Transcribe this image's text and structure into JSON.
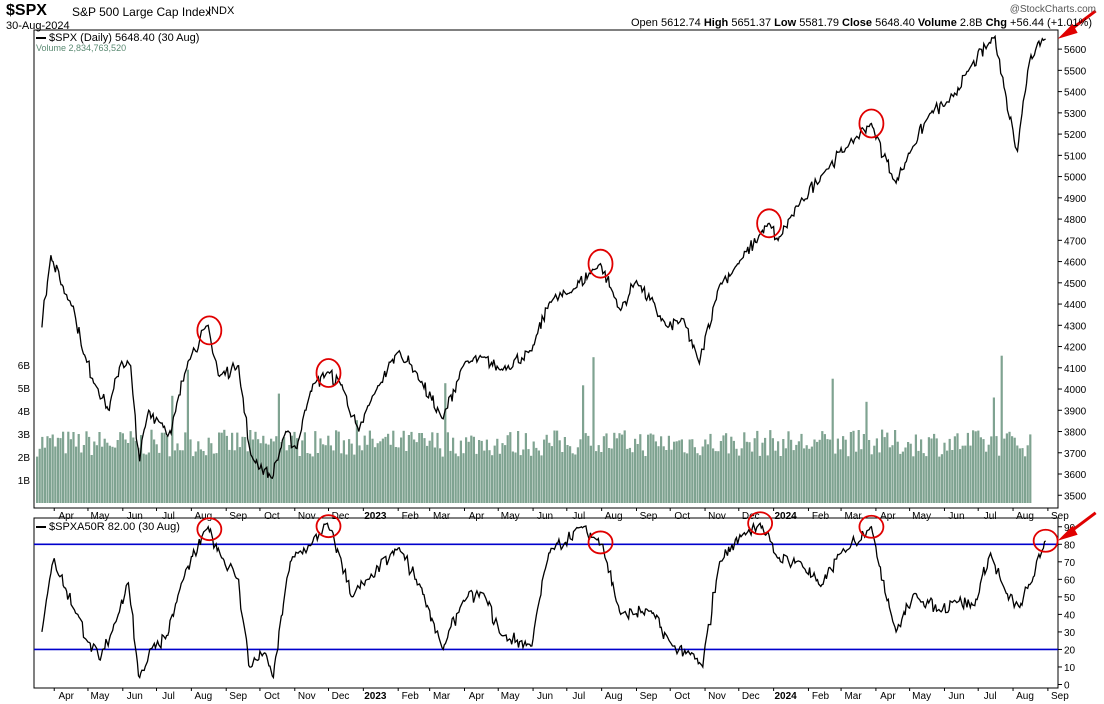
{
  "header": {
    "symbol": "$SPX",
    "name": "S&P 500 Large Cap Index",
    "exchange": "INDX",
    "date": "30-Aug-2024",
    "credit": "@StockCharts.com",
    "quote": {
      "open_label": "Open",
      "open": "5612.74",
      "high_label": "High",
      "high": "5651.37",
      "low_label": "Low",
      "low": "5581.79",
      "close_label": "Close",
      "close": "5648.40",
      "volume_label": "Volume",
      "volume": "2.8B",
      "chg_label": "Chg",
      "chg": "+56.44 (+1.01%)"
    }
  },
  "legend": {
    "price": "$SPX (Daily) 5648.40 (30 Aug)",
    "volume": "Volume 2,834,763,520",
    "indicator": "$SPXA50R 82.00 (30 Aug)"
  },
  "colors": {
    "price_line": "#000000",
    "volume_bar": "#7fa391",
    "indicator_line": "#000000",
    "threshold_line": "#0000cc",
    "highlight": "#e00000",
    "axis_text": "#000000",
    "border": "#000000"
  },
  "chart_data": [
    {
      "type": "line",
      "title": "$SPX (Daily)",
      "ylim": [
        3440,
        5690
      ],
      "yticks": [
        3500,
        3600,
        3700,
        3800,
        3900,
        4000,
        4100,
        4200,
        4300,
        4400,
        4500,
        4600,
        4700,
        4800,
        4900,
        5000,
        5100,
        5200,
        5300,
        5400,
        5500,
        5600
      ],
      "volume_ticks": [
        "1B",
        "2B",
        "3B",
        "4B",
        "5B",
        "6B"
      ],
      "x_labels": [
        "Apr",
        "May",
        "Jun",
        "Jul",
        "Aug",
        "Sep",
        "Oct",
        "Nov",
        "Dec",
        "2023",
        "Feb",
        "Mar",
        "Apr",
        "May",
        "Jun",
        "Jul",
        "Aug",
        "Sep",
        "Oct",
        "Nov",
        "Dec",
        "2024",
        "Feb",
        "Mar",
        "Apr",
        "May",
        "Jun",
        "Jul",
        "Aug",
        "Sep"
      ],
      "x_bold": [
        "2023",
        "2024"
      ],
      "price_points": [
        [
          "2022-03-21",
          4290
        ],
        [
          "2022-03-29",
          4630
        ],
        [
          "2022-04-08",
          4490
        ],
        [
          "2022-04-18",
          4390
        ],
        [
          "2022-04-28",
          4160
        ],
        [
          "2022-05-10",
          4000
        ],
        [
          "2022-05-20",
          3900
        ],
        [
          "2022-05-31",
          4130
        ],
        [
          "2022-06-08",
          4110
        ],
        [
          "2022-06-16",
          3660
        ],
        [
          "2022-06-24",
          3900
        ],
        [
          "2022-07-06",
          3840
        ],
        [
          "2022-07-14",
          3790
        ],
        [
          "2022-07-29",
          4130
        ],
        [
          "2022-08-16",
          4300
        ],
        [
          "2022-08-26",
          4060
        ],
        [
          "2022-09-12",
          4110
        ],
        [
          "2022-09-23",
          3690
        ],
        [
          "2022-10-12",
          3580
        ],
        [
          "2022-10-24",
          3800
        ],
        [
          "2022-11-03",
          3720
        ],
        [
          "2022-11-15",
          3990
        ],
        [
          "2022-11-30",
          4080
        ],
        [
          "2022-12-13",
          4020
        ],
        [
          "2022-12-28",
          3800
        ],
        [
          "2023-01-13",
          4000
        ],
        [
          "2023-02-02",
          4180
        ],
        [
          "2023-02-17",
          4080
        ],
        [
          "2023-03-13",
          3860
        ],
        [
          "2023-03-31",
          4110
        ],
        [
          "2023-04-18",
          4150
        ],
        [
          "2023-05-03",
          4090
        ],
        [
          "2023-05-31",
          4180
        ],
        [
          "2023-06-16",
          4410
        ],
        [
          "2023-07-03",
          4450
        ],
        [
          "2023-07-31",
          4590
        ],
        [
          "2023-08-18",
          4370
        ],
        [
          "2023-09-01",
          4510
        ],
        [
          "2023-09-29",
          4290
        ],
        [
          "2023-10-13",
          4330
        ],
        [
          "2023-10-27",
          4120
        ],
        [
          "2023-11-14",
          4490
        ],
        [
          "2023-12-01",
          4590
        ],
        [
          "2023-12-28",
          4780
        ],
        [
          "2024-01-05",
          4700
        ],
        [
          "2024-01-24",
          4870
        ],
        [
          "2024-02-15",
          5020
        ],
        [
          "2024-03-08",
          5150
        ],
        [
          "2024-03-28",
          5250
        ],
        [
          "2024-04-19",
          4970
        ],
        [
          "2024-05-03",
          5130
        ],
        [
          "2024-05-20",
          5300
        ],
        [
          "2024-06-05",
          5350
        ],
        [
          "2024-06-20",
          5480
        ],
        [
          "2024-07-16",
          5660
        ],
        [
          "2024-07-25",
          5400
        ],
        [
          "2024-08-05",
          5120
        ],
        [
          "2024-08-16",
          5550
        ],
        [
          "2024-08-23",
          5630
        ],
        [
          "2024-08-30",
          5648
        ]
      ],
      "volume_avg_b": 2.8
    },
    {
      "type": "line",
      "title": "$SPXA50R",
      "ylim": [
        -2,
        95
      ],
      "yticks": [
        0,
        10,
        20,
        30,
        40,
        50,
        60,
        70,
        80,
        90
      ],
      "threshold_lines": [
        80,
        20
      ],
      "points": [
        [
          "2022-03-21",
          30
        ],
        [
          "2022-04-01",
          72
        ],
        [
          "2022-04-11",
          55
        ],
        [
          "2022-04-22",
          40
        ],
        [
          "2022-05-02",
          24
        ],
        [
          "2022-05-12",
          14
        ],
        [
          "2022-05-27",
          38
        ],
        [
          "2022-06-06",
          58
        ],
        [
          "2022-06-16",
          4
        ],
        [
          "2022-06-28",
          22
        ],
        [
          "2022-07-11",
          28
        ],
        [
          "2022-07-25",
          60
        ],
        [
          "2022-08-16",
          90
        ],
        [
          "2022-08-29",
          72
        ],
        [
          "2022-09-12",
          60
        ],
        [
          "2022-09-22",
          10
        ],
        [
          "2022-10-05",
          18
        ],
        [
          "2022-10-13",
          4
        ],
        [
          "2022-10-28",
          70
        ],
        [
          "2022-11-16",
          80
        ],
        [
          "2022-11-30",
          92
        ],
        [
          "2022-12-12",
          72
        ],
        [
          "2022-12-22",
          50
        ],
        [
          "2023-01-06",
          60
        ],
        [
          "2023-02-02",
          78
        ],
        [
          "2023-02-22",
          55
        ],
        [
          "2023-03-13",
          20
        ],
        [
          "2023-03-31",
          48
        ],
        [
          "2023-04-18",
          52
        ],
        [
          "2023-05-04",
          28
        ],
        [
          "2023-05-31",
          22
        ],
        [
          "2023-06-15",
          75
        ],
        [
          "2023-07-14",
          90
        ],
        [
          "2023-08-02",
          80
        ],
        [
          "2023-08-18",
          40
        ],
        [
          "2023-09-14",
          42
        ],
        [
          "2023-10-03",
          22
        ],
        [
          "2023-10-18",
          18
        ],
        [
          "2023-10-30",
          10
        ],
        [
          "2023-11-14",
          70
        ],
        [
          "2023-12-05",
          86
        ],
        [
          "2023-12-20",
          92
        ],
        [
          "2024-01-05",
          72
        ],
        [
          "2024-01-25",
          70
        ],
        [
          "2024-02-12",
          56
        ],
        [
          "2024-03-01",
          75
        ],
        [
          "2024-03-28",
          90
        ],
        [
          "2024-04-19",
          30
        ],
        [
          "2024-05-06",
          52
        ],
        [
          "2024-05-28",
          42
        ],
        [
          "2024-06-10",
          48
        ],
        [
          "2024-06-28",
          45
        ],
        [
          "2024-07-12",
          75
        ],
        [
          "2024-07-26",
          52
        ],
        [
          "2024-08-07",
          44
        ],
        [
          "2024-08-20",
          62
        ],
        [
          "2024-08-30",
          82
        ]
      ]
    }
  ],
  "annotations": {
    "price_circles": [
      "2022-08-17",
      "2022-12-01",
      "2023-07-31",
      "2023-12-28",
      "2024-03-28"
    ],
    "indicator_circles": [
      "2022-08-17",
      "2022-12-01",
      "2023-07-31",
      "2023-12-20",
      "2024-03-28",
      "2024-08-30"
    ],
    "arrows": [
      "latest price",
      "latest indicator"
    ]
  }
}
